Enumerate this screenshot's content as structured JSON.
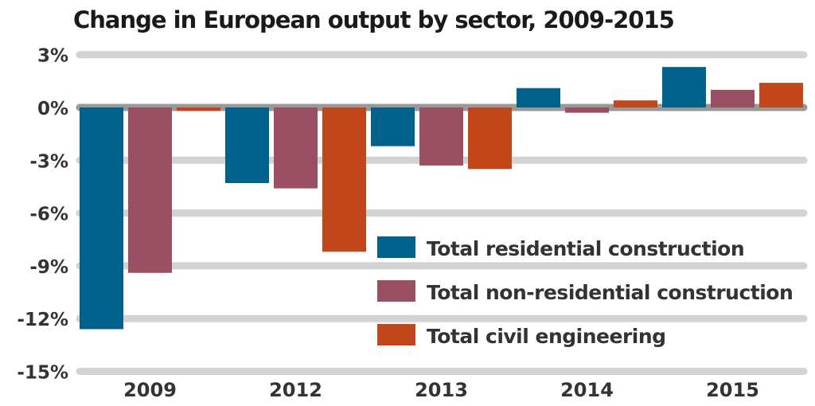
{
  "chart_data": {
    "type": "bar",
    "title": "Change in European output by sector, 2009-2015",
    "categories": [
      "2009",
      "2012",
      "2013",
      "2014",
      "2015"
    ],
    "series": [
      {
        "name": "Total residential construction",
        "color": "#00618a",
        "values": [
          -12.6,
          -4.3,
          -2.2,
          1.1,
          2.3
        ]
      },
      {
        "name": "Total non-residential construction",
        "color": "#9b4f62",
        "values": [
          -9.4,
          -4.6,
          -3.3,
          -0.3,
          1.0
        ]
      },
      {
        "name": "Total civil engineering",
        "color": "#c1461a",
        "values": [
          -0.2,
          -8.2,
          -3.5,
          0.4,
          1.4
        ]
      }
    ],
    "ylim": [
      -15,
      3
    ],
    "yticks": [
      3,
      0,
      -3,
      -6,
      -9,
      -12,
      -15
    ],
    "ytick_labels": [
      "3%",
      "0%",
      "-3%",
      "-6%",
      "-9%",
      "-12%",
      "-15%"
    ],
    "grid": true,
    "legend_position": "bottom-right",
    "xlabel": "",
    "ylabel": ""
  }
}
